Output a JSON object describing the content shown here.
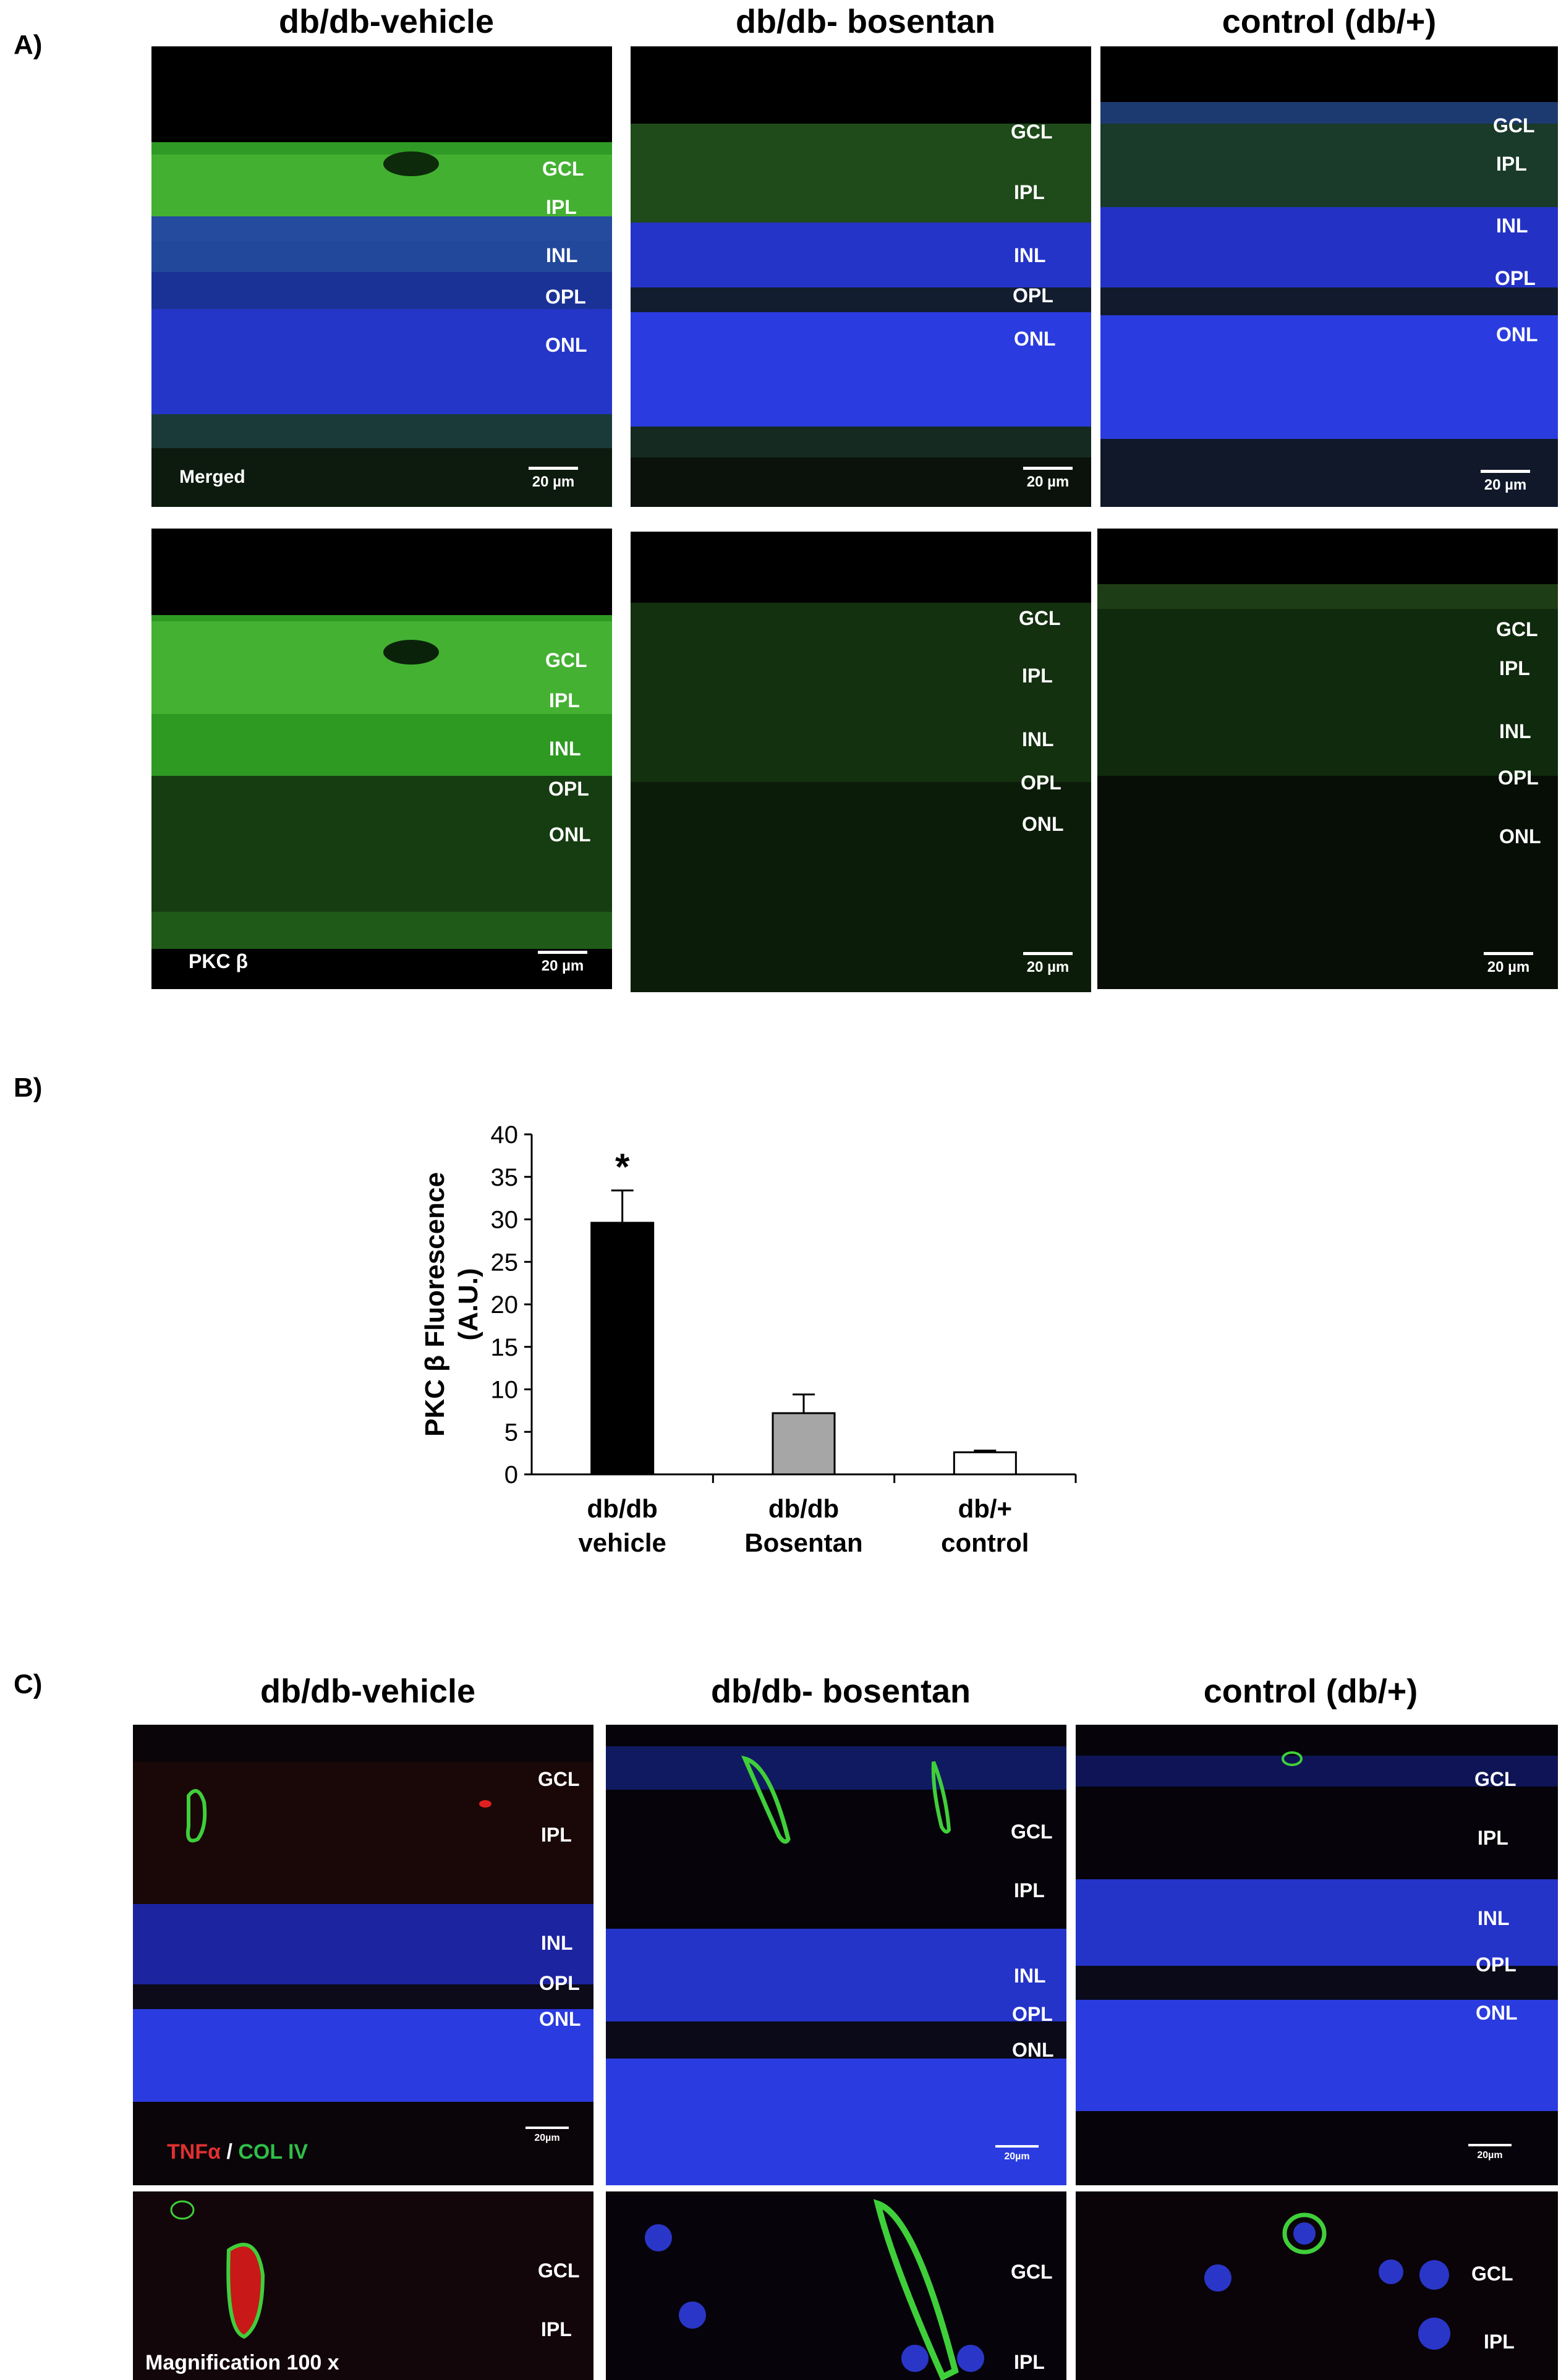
{
  "panel_a": {
    "letter": "A)",
    "columns": [
      "db/db-vehicle",
      "db/db- bosentan",
      "control (db/+)"
    ],
    "merged_label": "Merged",
    "pkc_label": "PKC β",
    "layers": [
      "GCL",
      "IPL",
      "INL",
      "OPL",
      "ONL"
    ],
    "scale_bar": "20 µm"
  },
  "panel_b": {
    "letter": "B)"
  },
  "chart_data": {
    "type": "bar",
    "categories": [
      [
        "db/db",
        "vehicle"
      ],
      [
        "db/db",
        "Bosentan"
      ],
      [
        "db/+",
        "control"
      ]
    ],
    "values": [
      29.6,
      7.2,
      2.6
    ],
    "errors": [
      3.8,
      2.2,
      0.2
    ],
    "colors": [
      "#000000",
      "#a6a6a6",
      "#ffffff"
    ],
    "significance": [
      "*",
      "",
      ""
    ],
    "ylabel_line1": "PKC β Fluorescence",
    "ylabel_line2": "(A.U.)",
    "ylim": [
      0,
      40
    ],
    "yticks": [
      0,
      5,
      10,
      15,
      20,
      25,
      30,
      35,
      40
    ],
    "grid": false
  },
  "panel_c": {
    "letter": "C)",
    "columns": [
      "db/db-vehicle",
      "db/db- bosentan",
      "control (db/+)"
    ],
    "stain_red": "TNFα",
    "stain_sep": " / ",
    "stain_green": "COL IV",
    "magnification": "Magnification 100 x",
    "scale_bar": "20µm",
    "col1_layers": [
      "GCL",
      "IPL",
      "INL",
      "OPL",
      "ONL"
    ],
    "col2_layers": [
      "GCL",
      "IPL",
      "INL",
      "OPL",
      "ONL"
    ],
    "col3_layers": [
      "GCL",
      "IPL",
      "INL",
      "OPL",
      "ONL"
    ],
    "zoom_layers": [
      "GCL",
      "IPL"
    ],
    "zoom_layers_col3": [
      "GCL",
      "IPL"
    ]
  }
}
